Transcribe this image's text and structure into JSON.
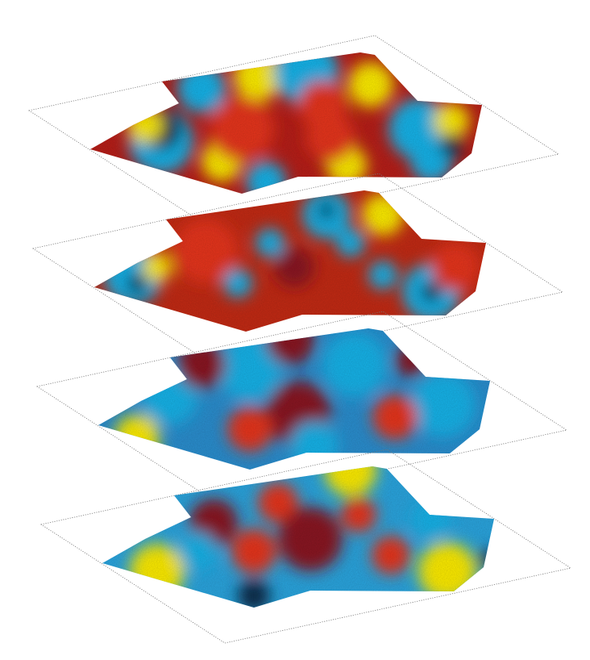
{
  "figure": {
    "layer_count": 4,
    "colormap": {
      "low_dark": "#0a2a4a",
      "low": "#17b4ea",
      "mid": "#8a1420",
      "high": "#e8361a",
      "peak": "#ffee00"
    },
    "plane_outline_color": "#777777",
    "layers": [
      {
        "base": "#b81e18",
        "dominant": "high"
      },
      {
        "base": "#c42a14",
        "dominant": "high"
      },
      {
        "base": "#2a8fd0",
        "dominant": "low"
      },
      {
        "base": "#2aa6e0",
        "dominant": "low"
      }
    ]
  }
}
